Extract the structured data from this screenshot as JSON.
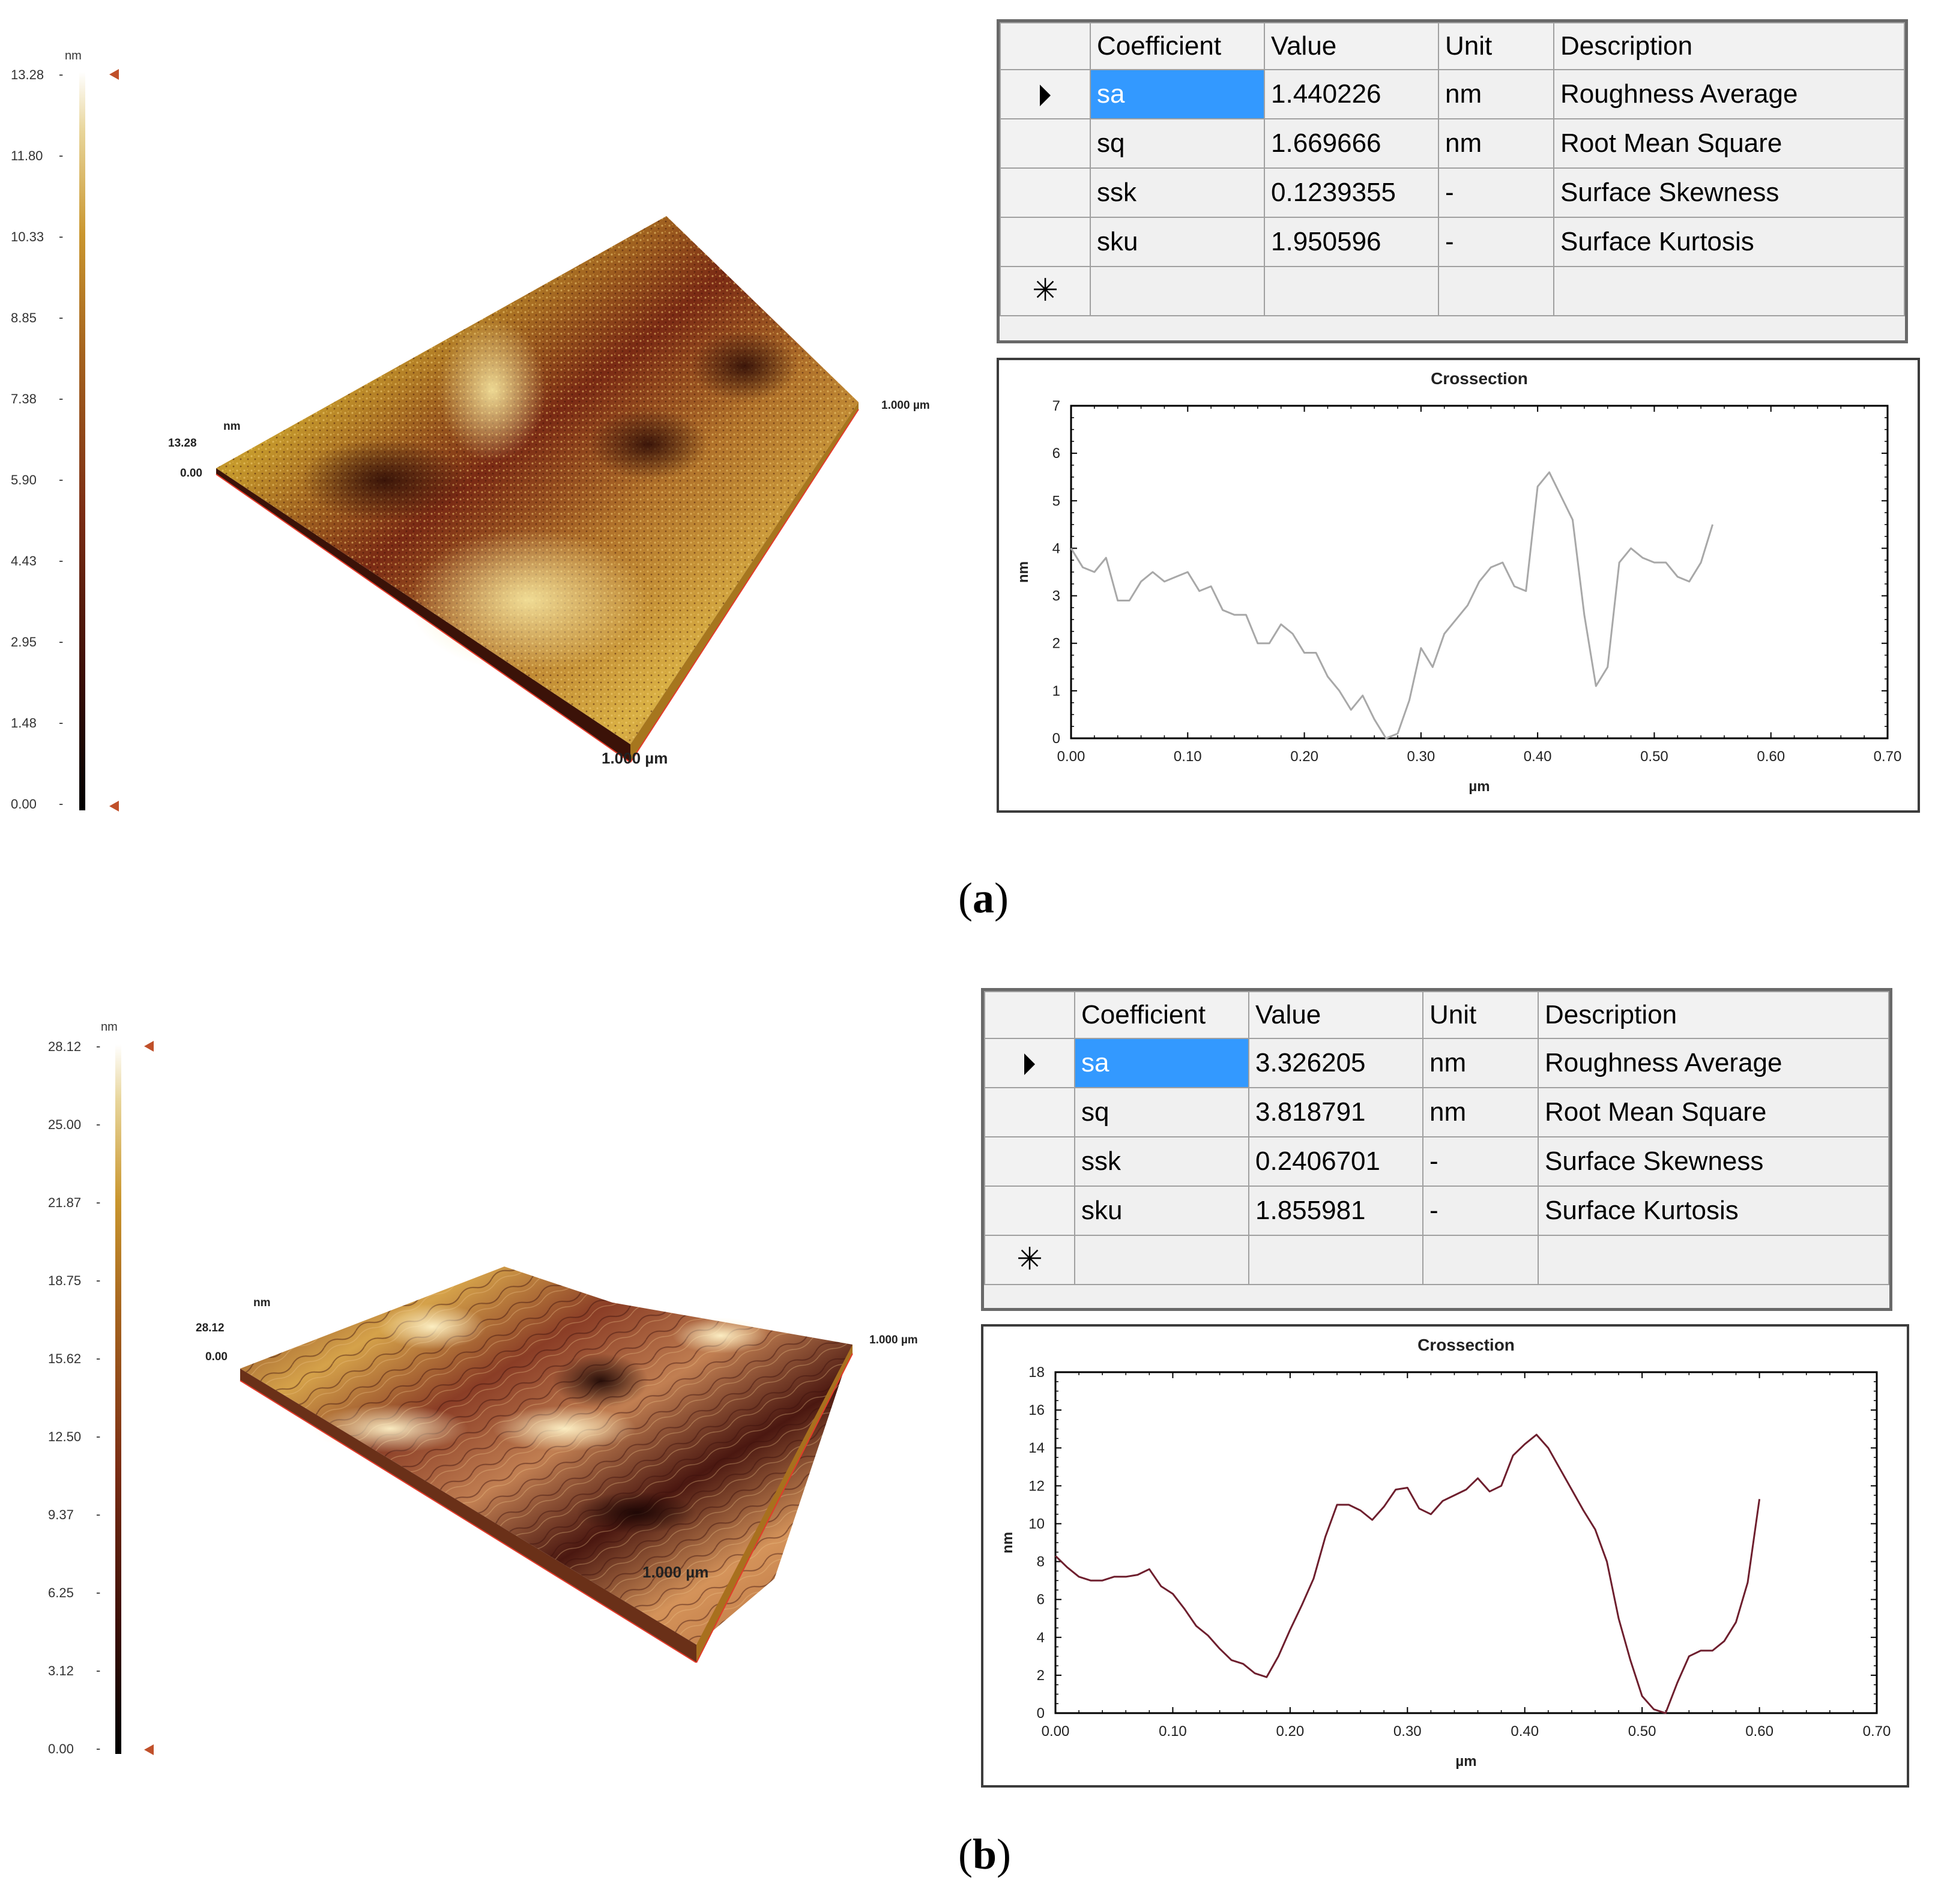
{
  "panels": [
    {
      "caption_letter": "a",
      "colorbar": {
        "unit": "nm",
        "ticks": [
          "13.28",
          "11.80",
          "10.33",
          "8.85",
          "7.38",
          "5.90",
          "4.43",
          "2.95",
          "1.48",
          "0.00"
        ]
      },
      "surface": {
        "z_max": "13.28",
        "z_min": "0.00",
        "z_unit": "nm",
        "x_extent": "1.000 µm",
        "y_extent": "1.000 µm"
      },
      "table": {
        "headers": [
          "Coefficient",
          "Value",
          "Unit",
          "Description"
        ],
        "rows": [
          {
            "coefficient": "sa",
            "value": "1.440226",
            "unit": "nm",
            "description": "Roughness Average"
          },
          {
            "coefficient": "sq",
            "value": "1.669666",
            "unit": "nm",
            "description": "Root Mean Square"
          },
          {
            "coefficient": "ssk",
            "value": "0.1239355",
            "unit": "-",
            "description": "Surface Skewness"
          },
          {
            "coefficient": "sku",
            "value": "1.950596",
            "unit": "-",
            "description": "Surface Kurtosis"
          }
        ],
        "new_row_symbol": "✳"
      }
    },
    {
      "caption_letter": "b",
      "colorbar": {
        "unit": "nm",
        "ticks": [
          "28.12",
          "25.00",
          "21.87",
          "18.75",
          "15.62",
          "12.50",
          "9.37",
          "6.25",
          "3.12",
          "0.00"
        ]
      },
      "surface": {
        "z_max": "28.12",
        "z_min": "0.00",
        "z_unit": "nm",
        "x_extent": "1.000 µm",
        "y_extent": "1.000 µm"
      },
      "table": {
        "headers": [
          "Coefficient",
          "Value",
          "Unit",
          "Description"
        ],
        "rows": [
          {
            "coefficient": "sa",
            "value": "3.326205",
            "unit": "nm",
            "description": "Roughness Average"
          },
          {
            "coefficient": "sq",
            "value": "3.818791",
            "unit": "nm",
            "description": "Root Mean Square"
          },
          {
            "coefficient": "ssk",
            "value": "0.2406701",
            "unit": "-",
            "description": "Surface Skewness"
          },
          {
            "coefficient": "sku",
            "value": "1.855981",
            "unit": "-",
            "description": "Surface Kurtosis"
          }
        ],
        "new_row_symbol": "✳"
      }
    }
  ],
  "colors": {
    "line_a": "#a8a8a8",
    "line_b": "#6e1f2e",
    "selected_cell": "#3399ff",
    "marker": "#c0502a"
  },
  "chart_data": [
    {
      "type": "line",
      "title": "Crossection",
      "xlabel": "µm",
      "ylabel": "nm",
      "xlim": [
        0,
        0.7
      ],
      "ylim": [
        0,
        7
      ],
      "x_ticks": [
        "0.00",
        "0.10",
        "0.20",
        "0.30",
        "0.40",
        "0.50",
        "0.60",
        "0.70"
      ],
      "y_ticks": [
        "0",
        "1",
        "2",
        "3",
        "4",
        "5",
        "6",
        "7"
      ],
      "grid": false,
      "series": [
        {
          "x": [
            0,
            0.01,
            0.02,
            0.03,
            0.04,
            0.05,
            0.06,
            0.07,
            0.08,
            0.09,
            0.1,
            0.11,
            0.12,
            0.13,
            0.14,
            0.15,
            0.16,
            0.17,
            0.18,
            0.19,
            0.2,
            0.21,
            0.22,
            0.23,
            0.24,
            0.25,
            0.26,
            0.27,
            0.28,
            0.29,
            0.3,
            0.31,
            0.32,
            0.33,
            0.34,
            0.35,
            0.36,
            0.37,
            0.38,
            0.39,
            0.4,
            0.41,
            0.42,
            0.43,
            0.44,
            0.45,
            0.46,
            0.47,
            0.48,
            0.49,
            0.5,
            0.51,
            0.52,
            0.53,
            0.54,
            0.55
          ],
          "y": [
            4.0,
            3.6,
            3.5,
            3.8,
            2.9,
            2.9,
            3.3,
            3.5,
            3.3,
            3.4,
            3.5,
            3.1,
            3.2,
            2.7,
            2.6,
            2.6,
            2.0,
            2.0,
            2.4,
            2.2,
            1.8,
            1.8,
            1.3,
            1.0,
            0.6,
            0.9,
            0.4,
            0.0,
            0.1,
            0.8,
            1.9,
            1.5,
            2.2,
            2.5,
            2.8,
            3.3,
            3.6,
            3.7,
            3.2,
            3.1,
            5.3,
            5.6,
            5.1,
            4.6,
            2.6,
            1.1,
            1.5,
            3.7,
            4.0,
            3.8,
            3.7,
            3.7,
            3.4,
            3.3,
            3.7,
            4.5
          ]
        }
      ]
    },
    {
      "type": "line",
      "title": "Crossection",
      "xlabel": "µm",
      "ylabel": "nm",
      "xlim": [
        0,
        0.7
      ],
      "ylim": [
        0,
        18
      ],
      "x_ticks": [
        "0.00",
        "0.10",
        "0.20",
        "0.30",
        "0.40",
        "0.50",
        "0.60",
        "0.70"
      ],
      "y_ticks": [
        "0",
        "2",
        "4",
        "6",
        "8",
        "10",
        "12",
        "14",
        "16",
        "18"
      ],
      "grid": false,
      "series": [
        {
          "x": [
            0,
            0.01,
            0.02,
            0.03,
            0.04,
            0.05,
            0.06,
            0.07,
            0.08,
            0.09,
            0.1,
            0.11,
            0.12,
            0.13,
            0.14,
            0.15,
            0.16,
            0.17,
            0.18,
            0.19,
            0.2,
            0.21,
            0.22,
            0.23,
            0.24,
            0.25,
            0.26,
            0.27,
            0.28,
            0.29,
            0.3,
            0.31,
            0.32,
            0.33,
            0.34,
            0.35,
            0.36,
            0.37,
            0.38,
            0.39,
            0.4,
            0.41,
            0.42,
            0.43,
            0.44,
            0.45,
            0.46,
            0.47,
            0.48,
            0.49,
            0.5,
            0.51,
            0.52,
            0.53,
            0.54,
            0.55,
            0.56,
            0.57,
            0.58,
            0.59,
            0.6
          ],
          "y": [
            8.3,
            7.7,
            7.2,
            7.0,
            7.0,
            7.2,
            7.2,
            7.3,
            7.6,
            6.7,
            6.3,
            5.5,
            4.6,
            4.1,
            3.4,
            2.8,
            2.6,
            2.1,
            1.9,
            3.0,
            4.4,
            5.7,
            7.1,
            9.3,
            11.0,
            11.0,
            10.7,
            10.2,
            10.9,
            11.8,
            11.9,
            10.8,
            10.5,
            11.2,
            11.5,
            11.8,
            12.4,
            11.7,
            12.0,
            13.6,
            14.2,
            14.7,
            14.0,
            12.9,
            11.8,
            10.7,
            9.7,
            8.0,
            5.0,
            2.8,
            0.9,
            0.2,
            0.0,
            1.6,
            3.0,
            3.3,
            3.3,
            3.8,
            4.8,
            6.9,
            11.3
          ]
        }
      ]
    }
  ]
}
